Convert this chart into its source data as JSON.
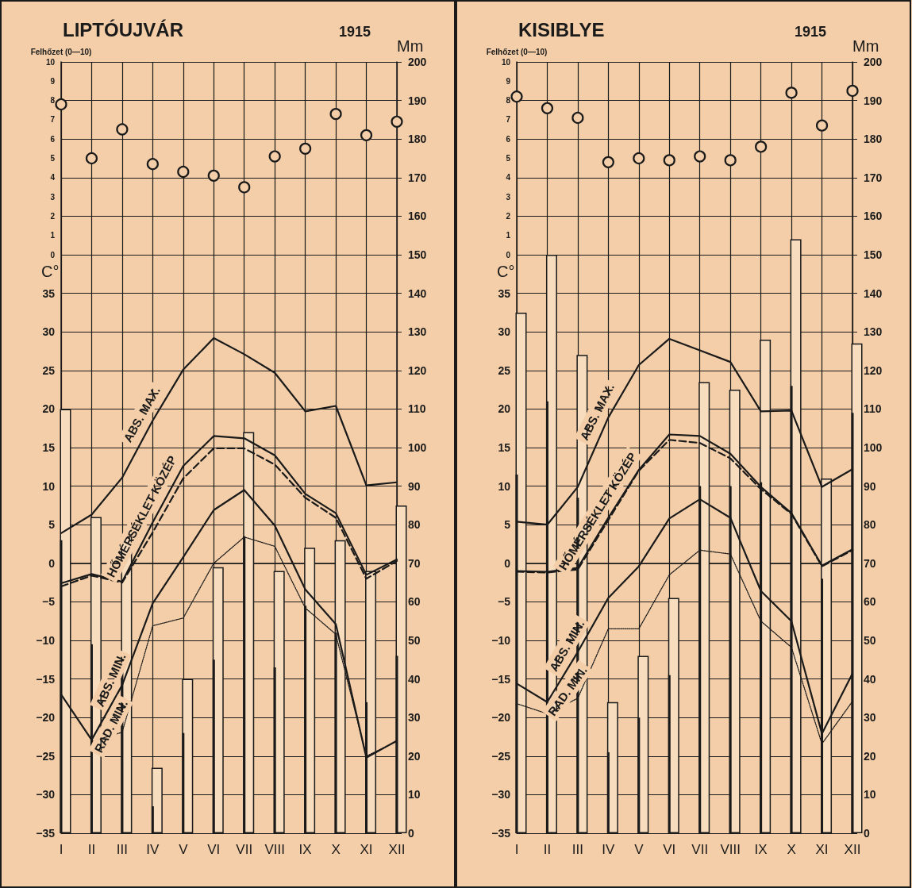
{
  "chart_data": [
    {
      "type": "line",
      "title": "LIPTÓUJVÁR",
      "subtitle": "1915",
      "ylabel": "C°",
      "y2label": "Mm",
      "y3label": "Felhőzet (0—10)",
      "categories": [
        "I",
        "II",
        "III",
        "IV",
        "V",
        "VI",
        "VII",
        "VIII",
        "IX",
        "X",
        "XI",
        "XII"
      ],
      "ylim": [
        -35,
        65
      ],
      "yticks": [
        -35,
        -30,
        -25,
        -20,
        -15,
        -10,
        -5,
        0,
        5,
        10,
        15,
        20,
        25,
        30,
        35
      ],
      "y2lim": [
        0,
        200
      ],
      "y2ticks": [
        0,
        10,
        20,
        30,
        40,
        50,
        60,
        70,
        80,
        90,
        100,
        110,
        120,
        130,
        140,
        150,
        160,
        170,
        180,
        190,
        200
      ],
      "y3lim": [
        -30,
        10
      ],
      "y3ticks": [
        0,
        1,
        2,
        3,
        4,
        5,
        6,
        7,
        8,
        9,
        10
      ],
      "grid": true,
      "series": [
        {
          "type": "bar",
          "axis": "y2",
          "color": "#f7dcbd",
          "values": [
            110,
            82,
            77,
            17,
            40,
            69,
            104,
            68,
            74,
            76,
            68,
            85
          ]
        },
        {
          "type": "bar",
          "axis": "y2",
          "color": "#1a1a1a",
          "values": [
            76,
            49,
            43,
            7,
            26,
            45,
            77,
            43,
            59,
            52,
            34,
            46
          ]
        },
        {
          "name": "ABS. MAX.",
          "color": "#1a1a1a",
          "line_style": "solid",
          "values": [
            3.9,
            6.3,
            11.1,
            18.5,
            25.1,
            29.2,
            27.1,
            24.7,
            19.7,
            20.4,
            10.1,
            10.5
          ]
        },
        {
          "name": "HŐMÉRSÉKLET KÖZÉP",
          "color": "#1a1a1a",
          "line_style": "solid",
          "values": [
            -2.6,
            -1.4,
            -2.4,
            5.3,
            12.6,
            16.5,
            16.2,
            14.0,
            9.0,
            6.5,
            -1.5,
            0.5
          ]
        },
        {
          "color": "#1a1a1a",
          "line_style": "dashed",
          "values": [
            -3.0,
            -1.6,
            -2.5,
            4.0,
            11.0,
            14.9,
            14.9,
            12.8,
            8.5,
            5.9,
            -2.0,
            0.3
          ]
        },
        {
          "name": "ABS. MIN.",
          "color": "#1a1a1a",
          "line_style": "solid",
          "values": [
            -17.0,
            -22.9,
            -15.8,
            -5.2,
            0.8,
            6.9,
            9.5,
            4.9,
            -3.4,
            -7.9,
            -25.2,
            -23.0
          ]
        },
        {
          "name": "RAD. MIN.",
          "color": "#1a1a1a",
          "line_style": "dotted",
          "values": [
            null,
            -23.1,
            -21.9,
            -8.1,
            -7.1,
            0,
            3.4,
            2.2,
            -5.8,
            -9.2,
            -25.0,
            -23.1
          ]
        },
        {
          "type": "scatter",
          "axis": "y3",
          "color": "#1a1a1a",
          "marker": "circle",
          "values": [
            7.8,
            5.0,
            6.5,
            4.7,
            4.3,
            4.1,
            3.5,
            5.1,
            5.5,
            7.3,
            6.2,
            6.9
          ]
        }
      ]
    },
    {
      "type": "line",
      "title": "KISIBLYE",
      "subtitle": "1915",
      "ylabel": "C°",
      "y2label": "Mm",
      "y3label": "Felhőzet (0—10)",
      "categories": [
        "I",
        "II",
        "III",
        "IV",
        "V",
        "VI",
        "VII",
        "VIII",
        "IX",
        "X",
        "XI",
        "XII"
      ],
      "ylim": [
        -35,
        65
      ],
      "yticks": [
        -35,
        -30,
        -25,
        -20,
        -15,
        -10,
        -5,
        0,
        5,
        10,
        15,
        20,
        25,
        30,
        35
      ],
      "y2lim": [
        0,
        200
      ],
      "y2ticks": [
        0,
        10,
        20,
        30,
        40,
        50,
        60,
        70,
        80,
        90,
        100,
        110,
        120,
        130,
        140,
        150,
        160,
        170,
        180,
        190,
        200
      ],
      "y3lim": [
        -30,
        10
      ],
      "y3ticks": [
        0,
        1,
        2,
        3,
        4,
        5,
        6,
        7,
        8,
        9,
        10
      ],
      "grid": true,
      "series": [
        {
          "type": "bar",
          "axis": "y2",
          "color": "#f7dcbd",
          "values": [
            135,
            150,
            124,
            34,
            46,
            61,
            117,
            115,
            128,
            154,
            92,
            127
          ]
        },
        {
          "type": "bar",
          "axis": "y2",
          "color": "#1a1a1a",
          "values": [
            93,
            112,
            87,
            21,
            30,
            41,
            90,
            90,
            91,
            116,
            66,
            109
          ]
        },
        {
          "name": "ABS. MAX.",
          "color": "#1a1a1a",
          "line_style": "solid",
          "values": [
            5.4,
            5.0,
            9.9,
            18.9,
            25.7,
            29.1,
            27.6,
            26.1,
            19.7,
            19.8,
            9.9,
            12.2
          ]
        },
        {
          "name": "HŐMÉRSÉKLET KÖZÉP",
          "color": "#1a1a1a",
          "line_style": "solid",
          "values": [
            -1.0,
            -1.1,
            -0.6,
            5.9,
            12.1,
            16.7,
            16.5,
            14.2,
            9.9,
            6.5,
            -0.3,
            1.8
          ]
        },
        {
          "color": "#1a1a1a",
          "line_style": "dashed",
          "values": [
            -1.1,
            -1.2,
            -0.8,
            5.6,
            12.0,
            16.0,
            15.6,
            13.6,
            9.6,
            6.4,
            -0.4,
            1.7
          ]
        },
        {
          "name": "ABS. MIN.",
          "color": "#1a1a1a",
          "line_style": "solid",
          "values": [
            -15.6,
            -18.0,
            -11.5,
            -4.5,
            -0.4,
            5.8,
            8.3,
            5.9,
            -3.6,
            -7.5,
            -22.1,
            -14.3
          ]
        },
        {
          "name": "RAD. MIN.",
          "color": "#1a1a1a",
          "line_style": "dotted",
          "values": [
            -18.2,
            -19.5,
            -17.5,
            -8.5,
            -8.5,
            -1.5,
            1.7,
            1.2,
            -7.5,
            -10.9,
            -23.4,
            -17.9
          ]
        },
        {
          "type": "scatter",
          "axis": "y3",
          "color": "#1a1a1a",
          "marker": "circle",
          "values": [
            8.2,
            7.6,
            7.1,
            4.8,
            5.0,
            4.9,
            5.1,
            4.9,
            5.6,
            8.4,
            6.7,
            8.5
          ]
        }
      ]
    }
  ]
}
